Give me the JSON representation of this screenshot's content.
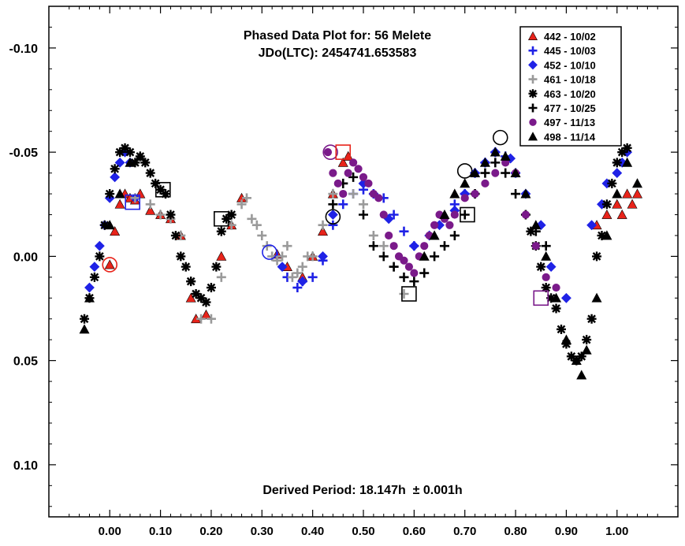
{
  "chart_data": {
    "type": "scatter",
    "title": "Phased Data Plot for: 56 Melete",
    "subtitle": "JDo(LTC): 2454741.653583",
    "footer": "Derived Period: 18.147h  ± 0.001h",
    "xlabel": "",
    "ylabel": "",
    "xlim": [
      -0.12,
      1.12
    ],
    "ylim": [
      0.125,
      -0.12
    ],
    "y_inverted": true,
    "grid": false,
    "legend_position": "top-right",
    "x_ticks": [
      "0.00",
      "0.10",
      "0.20",
      "0.30",
      "0.40",
      "0.50",
      "0.60",
      "0.70",
      "0.80",
      "0.90",
      "1.00"
    ],
    "y_ticks": [
      "-0.10",
      "-0.05",
      "0.00",
      "0.05",
      "0.10"
    ],
    "series": [
      {
        "name": "442 - 10/02",
        "marker": "triangle",
        "color": "#e8231a",
        "x": [
          0.0,
          0.01,
          0.02,
          0.03,
          0.04,
          0.05,
          0.06,
          0.08,
          0.1,
          0.12,
          0.14,
          0.16,
          0.17,
          0.19,
          0.22,
          0.24,
          0.26,
          0.33,
          0.35,
          0.38,
          0.4,
          0.42,
          0.44,
          0.46,
          0.47,
          0.96,
          0.98,
          1.0,
          1.01,
          1.02,
          1.03,
          1.04
        ],
        "y": [
          0.004,
          -0.012,
          -0.025,
          -0.03,
          -0.028,
          -0.027,
          -0.03,
          -0.022,
          -0.02,
          -0.018,
          -0.01,
          0.02,
          0.03,
          0.028,
          0.0,
          -0.015,
          -0.028,
          -0.001,
          0.005,
          0.01,
          0.0,
          -0.012,
          -0.03,
          -0.045,
          -0.048,
          -0.015,
          -0.02,
          -0.025,
          -0.02,
          -0.03,
          -0.025,
          -0.03
        ]
      },
      {
        "name": "445 - 10/03",
        "marker": "plus",
        "color": "#1f22e6",
        "x": [
          0.33,
          0.35,
          0.37,
          0.38,
          0.4,
          0.42,
          0.44,
          0.46,
          0.48,
          0.5,
          0.52,
          0.54,
          0.56,
          0.58,
          0.6,
          0.68,
          0.7,
          0.72,
          0.74,
          0.76,
          0.78,
          0.8
        ],
        "y": [
          0.0,
          0.01,
          0.015,
          0.012,
          0.01,
          0.002,
          -0.015,
          -0.025,
          -0.03,
          -0.032,
          -0.03,
          -0.028,
          -0.02,
          -0.012,
          -0.005,
          -0.025,
          -0.03,
          -0.04,
          -0.045,
          -0.05,
          -0.048,
          -0.04
        ]
      },
      {
        "name": "452 - 10/10",
        "marker": "diamond",
        "color": "#1f22e6",
        "x": [
          -0.04,
          -0.03,
          -0.02,
          -0.01,
          0.0,
          0.01,
          0.02,
          0.03,
          0.04,
          0.05,
          0.34,
          0.38,
          0.42,
          0.44,
          0.5,
          0.55,
          0.6,
          0.63,
          0.65,
          0.68,
          0.7,
          0.72,
          0.74,
          0.76,
          0.79,
          0.82,
          0.85,
          0.87,
          0.9,
          0.95,
          0.97,
          0.98,
          1.0,
          1.01,
          1.02
        ],
        "y": [
          0.015,
          0.005,
          -0.005,
          -0.015,
          -0.028,
          -0.038,
          -0.045,
          -0.05,
          -0.045,
          -0.028,
          0.005,
          0.012,
          0.0,
          -0.02,
          -0.035,
          -0.018,
          -0.005,
          -0.01,
          -0.015,
          -0.022,
          -0.03,
          -0.04,
          -0.045,
          -0.05,
          -0.047,
          -0.03,
          -0.015,
          0.005,
          0.02,
          -0.015,
          -0.025,
          -0.035,
          -0.04,
          -0.045,
          -0.05
        ]
      },
      {
        "name": "461 - 10/18",
        "marker": "plus",
        "color": "#9a9a9a",
        "x": [
          0.05,
          0.08,
          0.1,
          0.12,
          0.14,
          0.16,
          0.18,
          0.2,
          0.22,
          0.24,
          0.26,
          0.27,
          0.28,
          0.29,
          0.3,
          0.31,
          0.32,
          0.33,
          0.34,
          0.35,
          0.36,
          0.37,
          0.38,
          0.39,
          0.4,
          0.42,
          0.44,
          0.46,
          0.48,
          0.5,
          0.52,
          0.54,
          0.56,
          0.58
        ],
        "y": [
          -0.028,
          -0.025,
          -0.02,
          -0.018,
          -0.01,
          0.012,
          0.03,
          0.03,
          0.01,
          -0.015,
          -0.025,
          -0.028,
          -0.018,
          -0.015,
          -0.01,
          -0.005,
          0.0,
          0.002,
          0.0,
          -0.005,
          0.01,
          0.008,
          0.005,
          0.0,
          0.0,
          -0.015,
          -0.03,
          -0.035,
          -0.03,
          -0.025,
          -0.01,
          -0.005,
          0.005,
          0.018
        ]
      },
      {
        "name": "463 - 10/20",
        "marker": "asterisk",
        "color": "#000000",
        "x": [
          -0.05,
          -0.04,
          -0.03,
          -0.02,
          -0.01,
          0.0,
          0.01,
          0.02,
          0.03,
          0.04,
          0.05,
          0.06,
          0.07,
          0.08,
          0.09,
          0.1,
          0.11,
          0.12,
          0.13,
          0.14,
          0.15,
          0.16,
          0.17,
          0.18,
          0.19,
          0.2,
          0.21,
          0.22,
          0.23,
          0.24,
          0.83,
          0.84,
          0.85,
          0.86,
          0.87,
          0.88,
          0.89,
          0.9,
          0.91,
          0.92,
          0.93,
          0.94,
          0.95,
          0.96,
          0.97,
          0.98,
          0.99,
          1.0,
          1.01,
          1.02
        ],
        "y": [
          0.03,
          0.02,
          0.01,
          0.0,
          -0.015,
          -0.03,
          -0.042,
          -0.05,
          -0.052,
          -0.05,
          -0.045,
          -0.048,
          -0.045,
          -0.04,
          -0.035,
          -0.032,
          -0.03,
          -0.02,
          -0.01,
          0.0,
          0.005,
          0.012,
          0.018,
          0.02,
          0.022,
          0.015,
          0.005,
          -0.012,
          -0.018,
          -0.02,
          -0.012,
          -0.005,
          0.005,
          0.015,
          0.02,
          0.025,
          0.035,
          0.042,
          0.048,
          0.05,
          0.048,
          0.04,
          0.03,
          0.0,
          -0.01,
          -0.025,
          -0.035,
          -0.045,
          -0.05,
          -0.052
        ]
      },
      {
        "name": "477 - 10/25",
        "marker": "plus",
        "color": "#000000",
        "x": [
          0.44,
          0.46,
          0.48,
          0.5,
          0.52,
          0.54,
          0.56,
          0.58,
          0.6,
          0.62,
          0.64,
          0.66,
          0.68,
          0.7,
          0.72,
          0.74,
          0.76,
          0.78,
          0.8,
          0.82,
          0.84,
          0.86
        ],
        "y": [
          -0.025,
          -0.035,
          -0.038,
          -0.02,
          -0.005,
          0.0,
          0.005,
          0.01,
          0.012,
          0.008,
          0.0,
          -0.005,
          -0.01,
          -0.02,
          -0.03,
          -0.04,
          -0.045,
          -0.04,
          -0.03,
          -0.02,
          -0.012,
          -0.005
        ]
      },
      {
        "name": "497 - 11/13",
        "marker": "circle",
        "color": "#7a1a8a",
        "x": [
          0.43,
          0.44,
          0.45,
          0.46,
          0.47,
          0.48,
          0.49,
          0.5,
          0.51,
          0.52,
          0.53,
          0.54,
          0.55,
          0.56,
          0.57,
          0.58,
          0.59,
          0.6,
          0.61,
          0.62,
          0.63,
          0.64,
          0.65,
          0.66,
          0.67,
          0.68,
          0.7,
          0.72,
          0.74,
          0.76,
          0.78,
          0.8,
          0.82,
          0.84,
          0.86,
          0.88
        ],
        "y": [
          -0.05,
          -0.04,
          -0.035,
          -0.03,
          -0.04,
          -0.045,
          -0.042,
          -0.038,
          -0.035,
          -0.03,
          -0.028,
          -0.02,
          -0.01,
          -0.005,
          0.0,
          0.002,
          0.005,
          0.008,
          0.0,
          -0.005,
          -0.01,
          -0.015,
          -0.02,
          -0.018,
          -0.015,
          -0.02,
          -0.028,
          -0.03,
          -0.035,
          -0.04,
          -0.045,
          -0.04,
          -0.02,
          -0.005,
          0.01,
          0.015
        ]
      },
      {
        "name": "498 - 11/14",
        "marker": "triangle",
        "color": "#000000",
        "x": [
          -0.05,
          -0.04,
          0.0,
          0.02,
          0.04,
          0.06,
          0.62,
          0.64,
          0.66,
          0.68,
          0.7,
          0.72,
          0.74,
          0.76,
          0.78,
          0.8,
          0.82,
          0.84,
          0.86,
          0.88,
          0.9,
          0.92,
          0.93,
          0.94,
          0.96,
          0.98,
          1.0,
          1.02,
          1.04
        ],
        "y": [
          0.035,
          0.02,
          -0.015,
          -0.03,
          -0.045,
          -0.048,
          0.0,
          -0.01,
          -0.02,
          -0.03,
          -0.035,
          -0.04,
          -0.045,
          -0.05,
          -0.048,
          -0.04,
          -0.03,
          -0.015,
          0.0,
          0.02,
          0.04,
          0.05,
          0.057,
          0.045,
          0.02,
          -0.01,
          -0.03,
          -0.045,
          -0.035
        ]
      }
    ],
    "annotations": [
      {
        "shape": "circle",
        "color": "#e8231a",
        "x": 0.0,
        "y": 0.004
      },
      {
        "shape": "square",
        "color": "#1f22e6",
        "x": 0.045,
        "y": -0.026
      },
      {
        "shape": "square",
        "color": "#000000",
        "x": 0.105,
        "y": -0.032
      },
      {
        "shape": "square",
        "color": "#000000",
        "x": 0.22,
        "y": -0.018
      },
      {
        "shape": "circle",
        "color": "#1f22e6",
        "x": 0.315,
        "y": -0.002
      },
      {
        "shape": "circle",
        "color": "#7a1a8a",
        "x": 0.435,
        "y": -0.05
      },
      {
        "shape": "square",
        "color": "#e8231a",
        "x": 0.46,
        "y": -0.05
      },
      {
        "shape": "circle",
        "color": "#000000",
        "x": 0.44,
        "y": -0.019
      },
      {
        "shape": "square",
        "color": "#000000",
        "x": 0.59,
        "y": 0.018
      },
      {
        "shape": "circle",
        "color": "#000000",
        "x": 0.7,
        "y": -0.041
      },
      {
        "shape": "square",
        "color": "#000000",
        "x": 0.705,
        "y": -0.02
      },
      {
        "shape": "circle",
        "color": "#000000",
        "x": 0.77,
        "y": -0.057
      },
      {
        "shape": "square",
        "color": "#7a1a8a",
        "x": 0.85,
        "y": 0.02
      }
    ]
  }
}
